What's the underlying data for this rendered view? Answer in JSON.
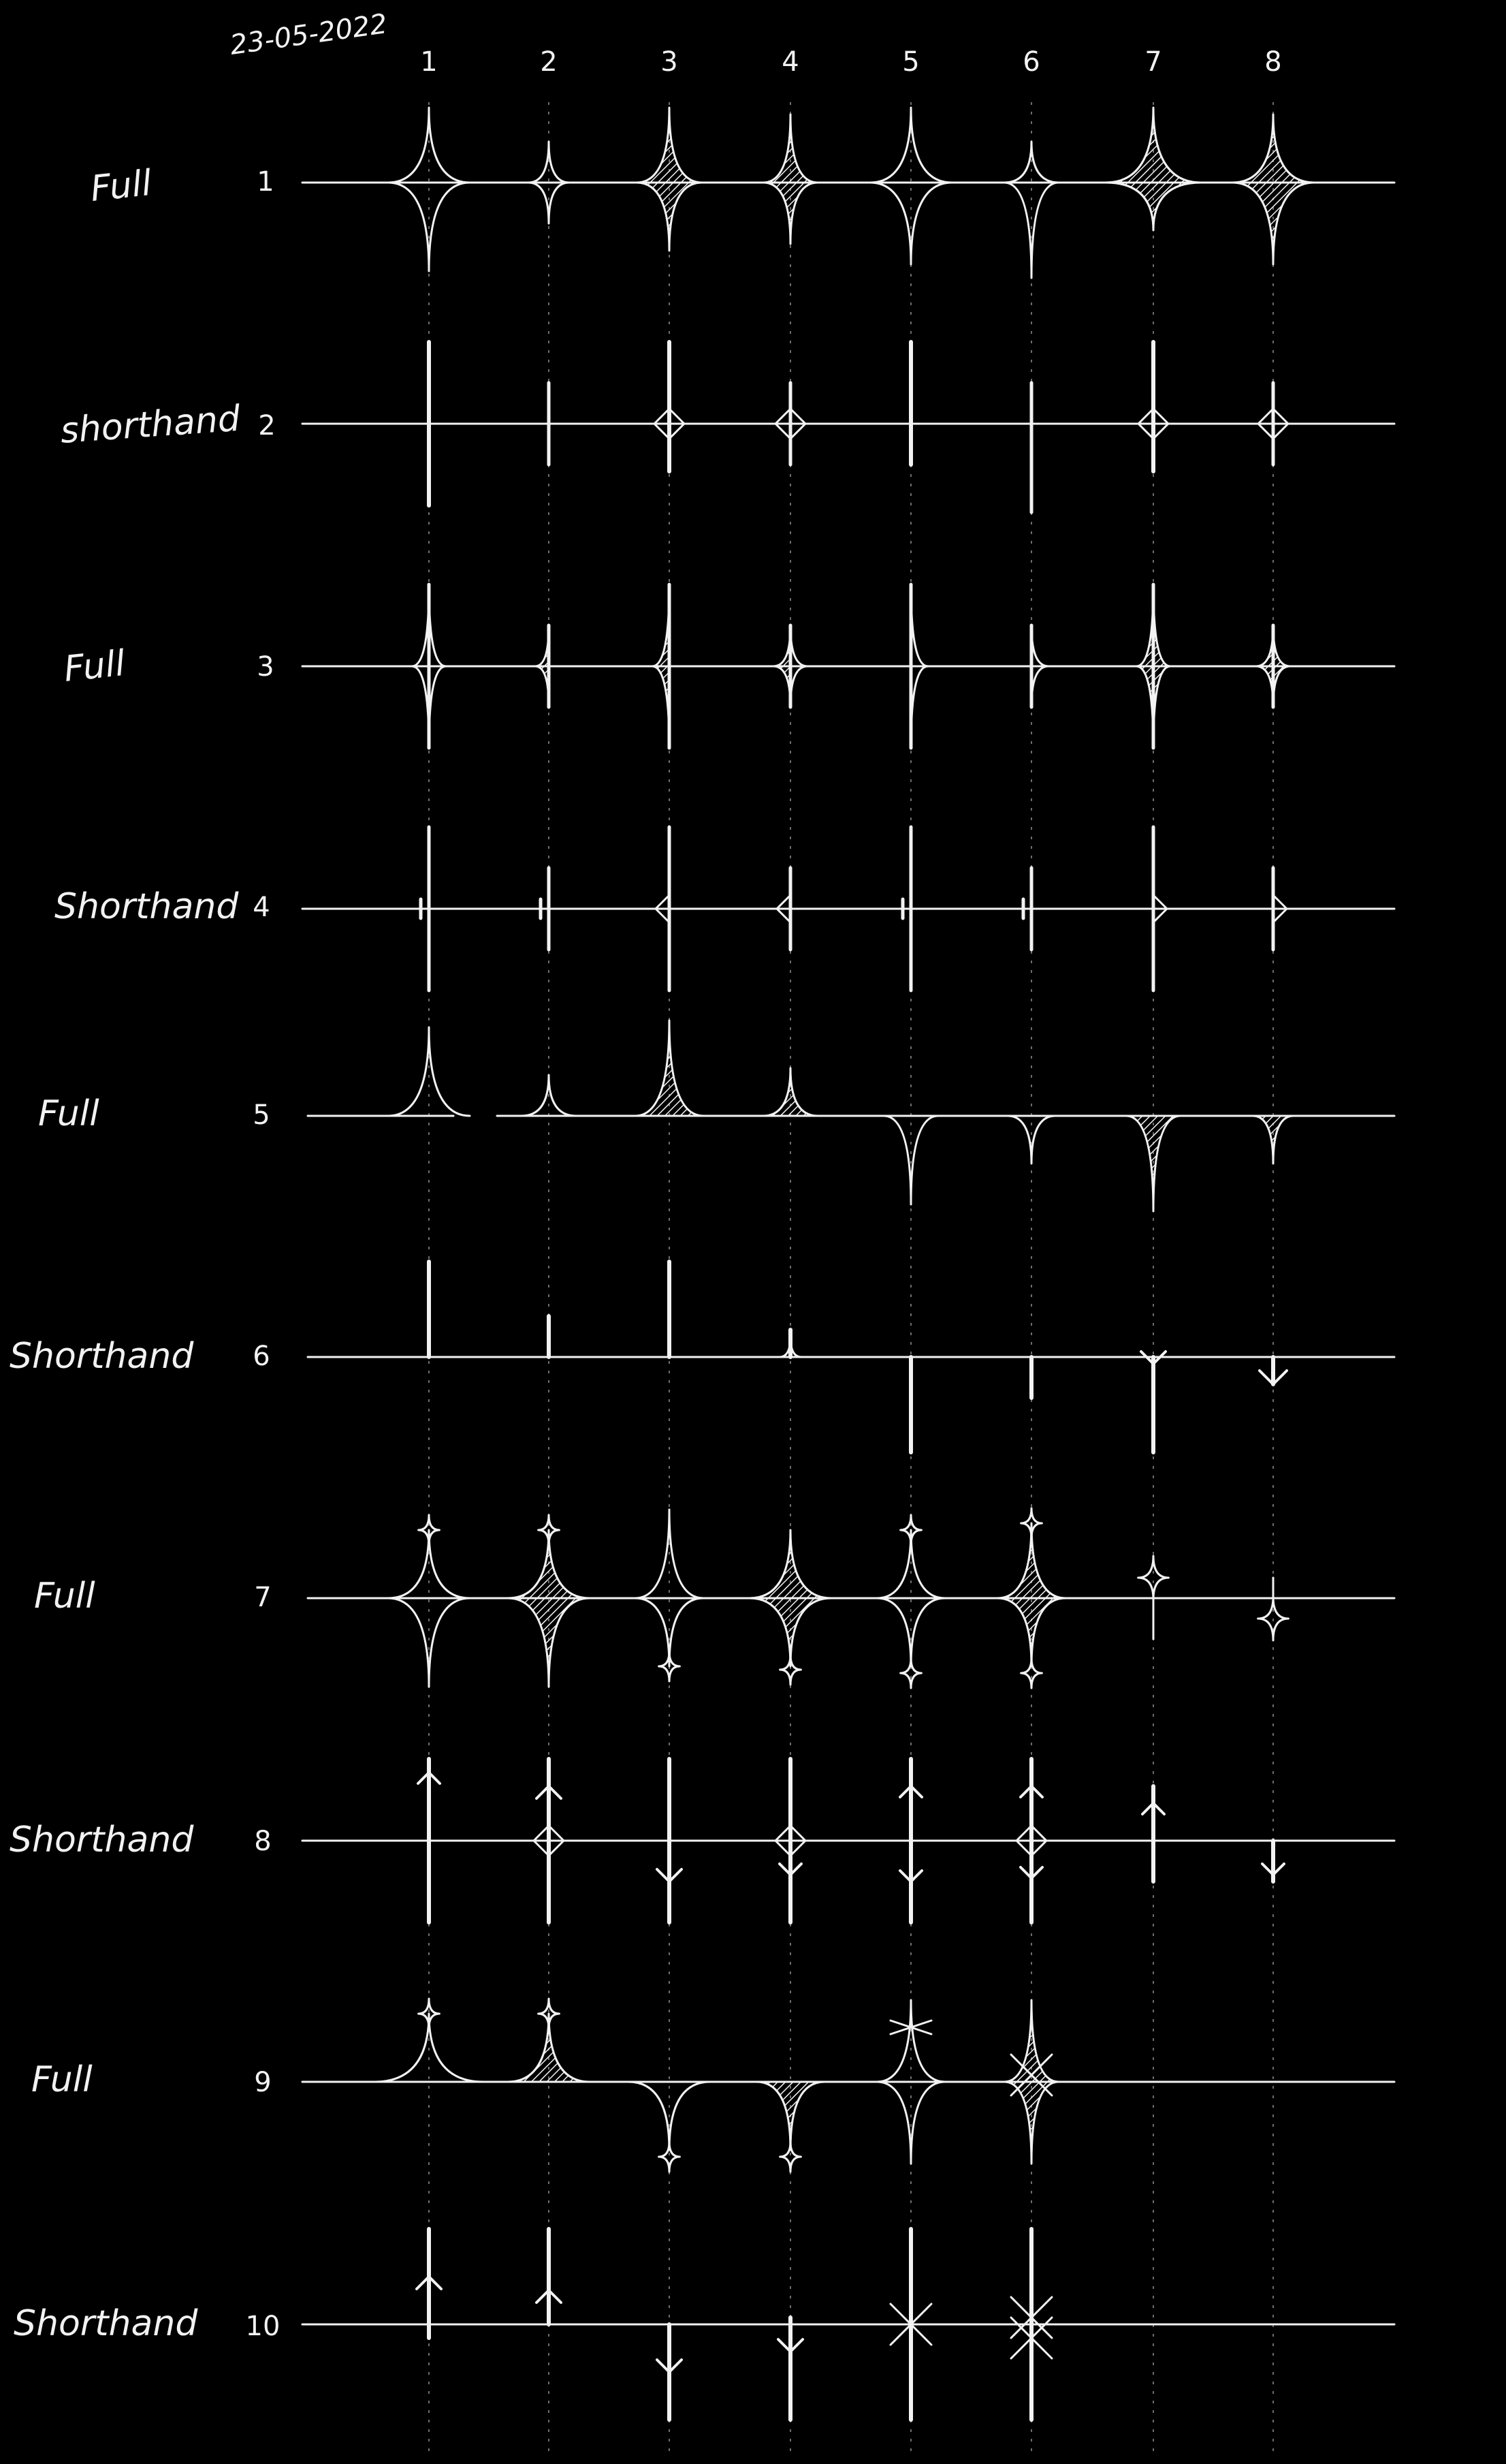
{
  "date": "23-05-2022",
  "columns": [
    "1",
    "2",
    "3",
    "4",
    "5",
    "6",
    "7",
    "8"
  ],
  "rows": [
    {
      "number": "1",
      "label": "Full"
    },
    {
      "number": "2",
      "label": "shorthand"
    },
    {
      "number": "3",
      "label": "Full"
    },
    {
      "number": "4",
      "label": "Shorthand"
    },
    {
      "number": "5",
      "label": "Full"
    },
    {
      "number": "6",
      "label": "Shorthand"
    },
    {
      "number": "7",
      "label": "Full"
    },
    {
      "number": "8",
      "label": "Shorthand"
    },
    {
      "number": "9",
      "label": "Full"
    },
    {
      "number": "10",
      "label": "Shorthand"
    }
  ]
}
